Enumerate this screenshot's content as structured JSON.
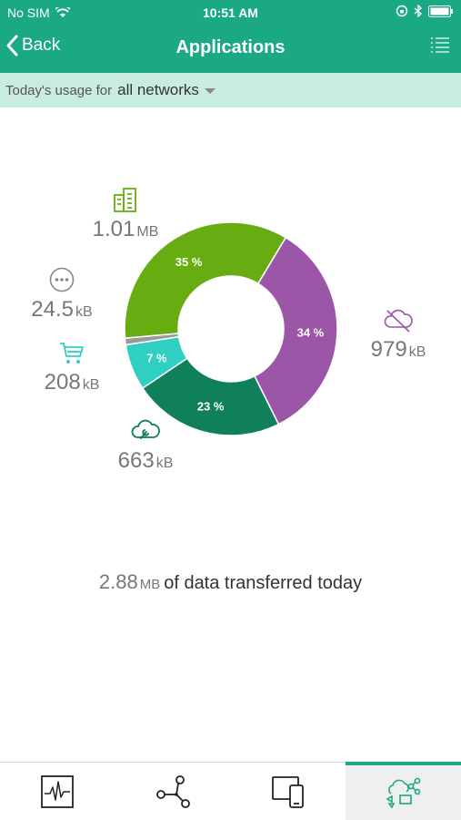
{
  "status": {
    "carrier": "No SIM",
    "time": "10:51 AM"
  },
  "nav": {
    "back_label": "Back",
    "title": "Applications"
  },
  "filter": {
    "label": "Today's usage for",
    "value": "all networks"
  },
  "chart_data": {
    "type": "pie",
    "categories": [
      "Business",
      "Cloud apps",
      "Cloud services",
      "Shopping",
      "Other"
    ],
    "values": [
      35,
      34,
      23,
      7,
      1
    ],
    "slice_labels": [
      "35 %",
      "34 %",
      "23 %",
      "7 %",
      ""
    ],
    "colors": [
      "#67ad12",
      "#9c56a8",
      "#0f7f5c",
      "#2fcfc2",
      "#9a9a9a"
    ]
  },
  "categories": {
    "business": {
      "icon": "building-icon",
      "value": "1.01",
      "unit": "MB"
    },
    "other": {
      "icon": "more-icon",
      "value": "24.5",
      "unit": "kB"
    },
    "shopping": {
      "icon": "cart-icon",
      "value": "208",
      "unit": "kB"
    },
    "cloud_services": {
      "icon": "cloud-wrench-icon",
      "value": "663",
      "unit": "kB"
    },
    "cloud_apps": {
      "icon": "cloud-off-icon",
      "value": "979",
      "unit": "kB"
    }
  },
  "total": {
    "value": "2.88",
    "unit": "MB",
    "text": "of data transferred today"
  },
  "tabs": [
    {
      "icon": "activity-icon",
      "active": false
    },
    {
      "icon": "network-icon",
      "active": false
    },
    {
      "icon": "devices-icon",
      "active": false
    },
    {
      "icon": "applications-icon",
      "active": true
    }
  ],
  "colors": {
    "brand": "#1aa885",
    "filter_bg": "#c9ece0"
  }
}
